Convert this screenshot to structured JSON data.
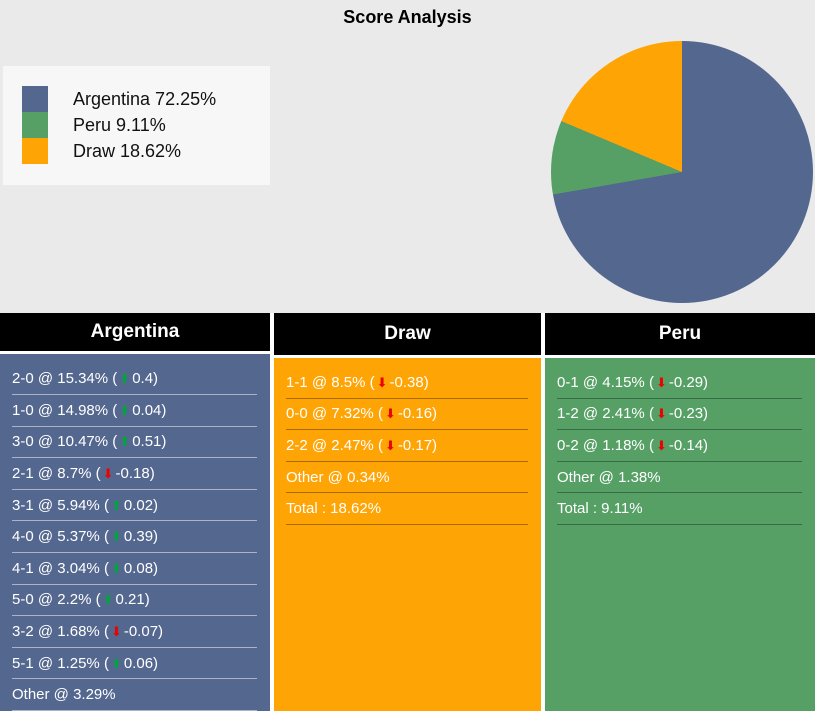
{
  "title": "Score Analysis",
  "colors": {
    "argentina": "#54678f",
    "peru": "#56a066",
    "draw": "#ffa405",
    "up_arrow": "#00a63c",
    "down_arrow": "#ec0000",
    "page_bg": "#eaeaea",
    "legend_bg": "#f7f7f7",
    "header_bg": "#000000",
    "row_text": "#ffffff"
  },
  "legend": {
    "items": [
      {
        "label": "Argentina",
        "pct": "72.25%",
        "color": "#54678f"
      },
      {
        "label": "Peru",
        "pct": "9.11%",
        "color": "#56a066"
      },
      {
        "label": "Draw",
        "pct": "18.62%",
        "color": "#ffa405"
      }
    ]
  },
  "chart_data": {
    "type": "pie",
    "title": "Score Analysis",
    "labels": [
      "Argentina",
      "Peru",
      "Draw"
    ],
    "values": [
      72.25,
      9.11,
      18.62
    ],
    "colors": [
      "#54678f",
      "#56a066",
      "#ffa405"
    ],
    "start_angle": "top",
    "direction": "clockwise",
    "legend_position": "upper-left"
  },
  "columns": [
    {
      "header": "Argentina",
      "color": "#54678f",
      "rows": [
        {
          "score": "2-0",
          "pct": "15.34%",
          "dir": "up",
          "delta": "0.4"
        },
        {
          "score": "1-0",
          "pct": "14.98%",
          "dir": "up",
          "delta": "0.04"
        },
        {
          "score": "3-0",
          "pct": "10.47%",
          "dir": "up",
          "delta": "0.51"
        },
        {
          "score": "2-1",
          "pct": "8.7%",
          "dir": "down",
          "delta": "-0.18"
        },
        {
          "score": "3-1",
          "pct": "5.94%",
          "dir": "up",
          "delta": "0.02"
        },
        {
          "score": "4-0",
          "pct": "5.37%",
          "dir": "up",
          "delta": "0.39"
        },
        {
          "score": "4-1",
          "pct": "3.04%",
          "dir": "up",
          "delta": "0.08"
        },
        {
          "score": "5-0",
          "pct": "2.2%",
          "dir": "up",
          "delta": "0.21"
        },
        {
          "score": "3-2",
          "pct": "1.68%",
          "dir": "down",
          "delta": "-0.07"
        },
        {
          "score": "5-1",
          "pct": "1.25%",
          "dir": "up",
          "delta": "0.06"
        },
        {
          "score": "Other",
          "pct": "3.29%"
        }
      ]
    },
    {
      "header": "Draw",
      "color": "#ffa405",
      "rows": [
        {
          "score": "1-1",
          "pct": "8.5%",
          "dir": "down",
          "delta": "-0.38"
        },
        {
          "score": "0-0",
          "pct": "7.32%",
          "dir": "down",
          "delta": "-0.16"
        },
        {
          "score": "2-2",
          "pct": "2.47%",
          "dir": "down",
          "delta": "-0.17"
        },
        {
          "score": "Other",
          "pct": "0.34%"
        },
        {
          "score": "Total",
          "pct": "18.62%",
          "total": true
        }
      ]
    },
    {
      "header": "Peru",
      "color": "#56a066",
      "rows": [
        {
          "score": "0-1",
          "pct": "4.15%",
          "dir": "down",
          "delta": "-0.29"
        },
        {
          "score": "1-2",
          "pct": "2.41%",
          "dir": "down",
          "delta": "-0.23"
        },
        {
          "score": "0-2",
          "pct": "1.18%",
          "dir": "down",
          "delta": "-0.14"
        },
        {
          "score": "Other",
          "pct": "1.38%"
        },
        {
          "score": "Total",
          "pct": "9.11%",
          "total": true
        }
      ]
    }
  ]
}
